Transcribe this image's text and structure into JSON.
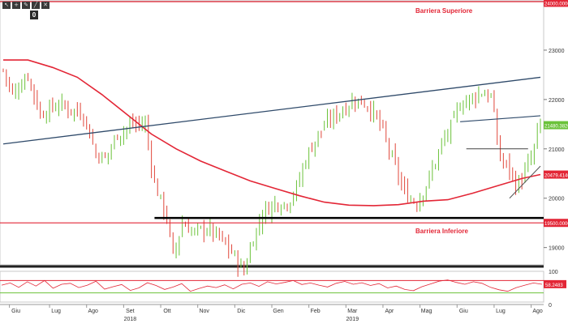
{
  "toolbar": {
    "icons": [
      "cursor-icon",
      "crosshair-icon",
      "pencil-icon",
      "line-icon",
      "erase-icon"
    ],
    "badge": "0"
  },
  "colors": {
    "up_candle": "#6bc23a",
    "down_candle": "#e0473b",
    "moving_average": "#e32636",
    "trendline": "#2f4a6a",
    "barrier": "#e32636",
    "support": "#000000",
    "rsi": "#e32636",
    "price_tag_bg": "#6bc23a",
    "ma_tag_bg": "#e32636",
    "barrier_tag_bg": "#e32636"
  },
  "chart_data": [
    {
      "type": "candlestick",
      "grid": false,
      "y_axis_side": "right",
      "x_axis": {
        "months": [
          "Giu",
          "Lug",
          "Ago",
          "Set",
          "Ott",
          "Nov",
          "Dic",
          "Gen",
          "Feb",
          "Mar",
          "Apr",
          "Mag",
          "Giu",
          "Lug",
          "Ago"
        ],
        "years": [
          "2018",
          "2019"
        ]
      },
      "y_axis": {
        "ticks": [
          19000,
          20000,
          21000,
          22000,
          23000
        ],
        "tick_labels": [
          "19000",
          "20000",
          "21000",
          "22000",
          "23000"
        ],
        "ylim": [
          18650,
          24000
        ]
      },
      "price_path": [
        [
          0,
          22600
        ],
        [
          3,
          22100
        ],
        [
          8,
          22500
        ],
        [
          12,
          21700
        ],
        [
          18,
          21900
        ],
        [
          22,
          21800
        ],
        [
          26,
          21700
        ],
        [
          30,
          20900
        ],
        [
          33,
          20800
        ],
        [
          37,
          21300
        ],
        [
          42,
          21500
        ],
        [
          46,
          21500
        ],
        [
          49,
          20300
        ],
        [
          53,
          19600
        ],
        [
          55,
          18800
        ],
        [
          58,
          19500
        ],
        [
          62,
          19300
        ],
        [
          66,
          19400
        ],
        [
          70,
          19200
        ],
        [
          74,
          18900
        ],
        [
          78,
          18500
        ],
        [
          80,
          19000
        ],
        [
          84,
          19700
        ],
        [
          88,
          19900
        ],
        [
          92,
          19900
        ],
        [
          95,
          20200
        ],
        [
          98,
          20800
        ],
        [
          102,
          21300
        ],
        [
          106,
          21600
        ],
        [
          110,
          21800
        ],
        [
          114,
          22000
        ],
        [
          118,
          21900
        ],
        [
          122,
          21500
        ],
        [
          126,
          20800
        ],
        [
          130,
          20100
        ],
        [
          134,
          19900
        ],
        [
          138,
          20400
        ],
        [
          142,
          21100
        ],
        [
          144,
          21300
        ],
        [
          148,
          21900
        ],
        [
          152,
          22050
        ],
        [
          155,
          22150
        ],
        [
          158,
          22050
        ],
        [
          161,
          20800
        ],
        [
          164,
          20600
        ],
        [
          166,
          20250
        ],
        [
          168,
          20400
        ],
        [
          171,
          20800
        ],
        [
          174,
          21500
        ]
      ],
      "moving_average": [
        [
          0,
          22800
        ],
        [
          8,
          22800
        ],
        [
          16,
          22650
        ],
        [
          24,
          22450
        ],
        [
          32,
          22100
        ],
        [
          40,
          21700
        ],
        [
          48,
          21300
        ],
        [
          56,
          21000
        ],
        [
          64,
          20750
        ],
        [
          72,
          20550
        ],
        [
          80,
          20350
        ],
        [
          88,
          20200
        ],
        [
          96,
          20050
        ],
        [
          104,
          19920
        ],
        [
          112,
          19860
        ],
        [
          120,
          19850
        ],
        [
          128,
          19870
        ],
        [
          136,
          19940
        ],
        [
          144,
          19970
        ],
        [
          152,
          20100
        ],
        [
          160,
          20250
        ],
        [
          168,
          20400
        ],
        [
          174,
          20480
        ]
      ],
      "annotations": {
        "upper_barrier": {
          "label": "Barriera Superiore",
          "value": 24000,
          "tag": "24000.00000"
        },
        "lower_barrier": {
          "label": "Barriera Inferiore",
          "value": 19500,
          "tag": "19500.00000"
        },
        "current_price_tag": "21480.38208",
        "moving_average_tag": "20479.41465",
        "support_line_value": 19600,
        "trendline": {
          "from": [
            0,
            21100
          ],
          "to": [
            174,
            22450
          ]
        },
        "channel_line": {
          "from": [
            148,
            21550
          ],
          "to": [
            174,
            21670
          ]
        },
        "horizontal_ref": {
          "from": [
            150,
            21000
          ],
          "to": [
            170,
            21000
          ]
        },
        "rising_line": {
          "from": [
            164,
            20000
          ],
          "to": [
            174,
            20650
          ]
        }
      }
    },
    {
      "type": "line",
      "name_on_chart": "",
      "y_axis": {
        "ticks": [
          0,
          100
        ],
        "tick_labels": [
          "0",
          "100"
        ],
        "ylim": [
          0,
          100
        ]
      },
      "bands": [
        70,
        30
      ],
      "value_tag": "58.2483",
      "series_values": [
        55,
        62,
        48,
        66,
        52,
        70,
        45,
        58,
        61,
        47,
        55,
        68,
        42,
        50,
        57,
        38,
        46,
        63,
        54,
        41,
        49,
        60,
        35,
        44,
        52,
        47,
        56,
        43,
        58,
        62,
        51,
        66,
        59,
        64,
        70,
        57,
        62,
        55,
        49,
        61,
        67,
        58,
        63,
        54,
        60,
        46,
        52,
        41,
        37,
        50,
        59,
        68,
        72,
        64,
        58,
        66,
        61,
        48,
        40,
        35,
        47,
        55,
        62,
        58
      ]
    }
  ]
}
